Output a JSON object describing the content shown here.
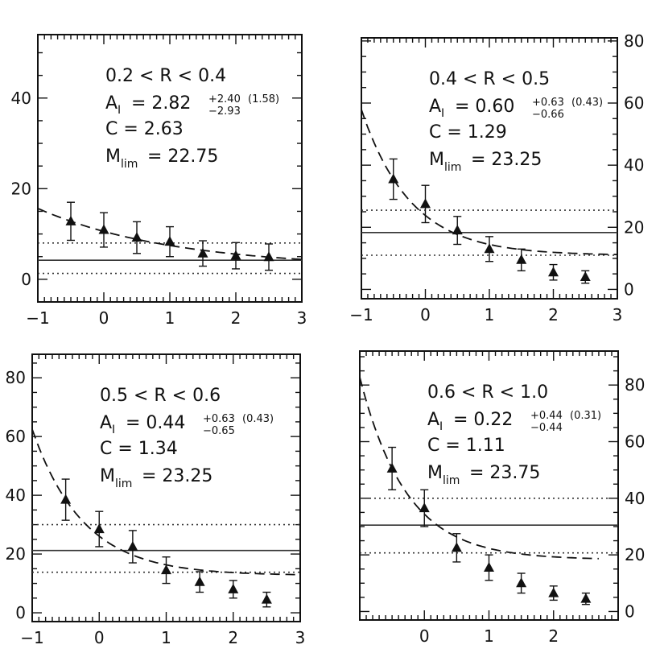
{
  "chart_data": [
    {
      "type": "scatter",
      "xlim": [
        -1,
        3
      ],
      "ylim": [
        -5,
        54
      ],
      "x_ticks": [
        -1,
        0,
        1,
        2,
        3
      ],
      "x_tick_labels": [
        "−1",
        "0",
        "1",
        "2",
        "3"
      ],
      "y_ticks": [
        0,
        20,
        40
      ],
      "y_tick_labels": [
        "0",
        "20",
        "40"
      ],
      "y_axis_side": "left",
      "annotation": {
        "range_label": "0.2 < R < 0.4",
        "a_label": "A",
        "a_sub": "I",
        "a_value": "= 2.82",
        "a_err_plus": "+2.40",
        "a_err_minus": "−2.93",
        "a_extra": "(1.58)",
        "c_label": "C = 2.63",
        "m_label": "M",
        "m_sub": "lim",
        "m_value": "= 22.75"
      },
      "points": [
        {
          "x": -0.5,
          "y": 12.8,
          "err": 4.2
        },
        {
          "x": 0.0,
          "y": 10.9,
          "err": 3.8
        },
        {
          "x": 0.5,
          "y": 9.2,
          "err": 3.5
        },
        {
          "x": 1.0,
          "y": 8.3,
          "err": 3.3
        },
        {
          "x": 1.5,
          "y": 5.7,
          "err": 2.8
        },
        {
          "x": 2.0,
          "y": 5.2,
          "err": 2.9
        },
        {
          "x": 2.5,
          "y": 4.9,
          "err": 2.9
        }
      ],
      "fit_curve": {
        "a": 2.82,
        "c": 2.63,
        "x0": -1,
        "x1": 3
      },
      "solid_line_y": 4.2,
      "dotted_lines_y": [
        8.0,
        1.3
      ]
    },
    {
      "type": "scatter",
      "xlim": [
        -1,
        3
      ],
      "ylim": [
        -3,
        81
      ],
      "x_ticks": [
        -1,
        0,
        1,
        2,
        3
      ],
      "x_tick_labels": [
        "−1",
        "0",
        "1",
        "2",
        "3"
      ],
      "y_ticks": [
        0,
        20,
        40,
        60,
        80
      ],
      "y_tick_labels": [
        "0",
        "20",
        "40",
        "60",
        "80"
      ],
      "y_axis_side": "right",
      "annotation": {
        "range_label": "0.4 < R < 0.5",
        "a_label": "A",
        "a_sub": "I",
        "a_value": "= 0.60",
        "a_err_plus": "+0.63",
        "a_err_minus": "−0.66",
        "a_extra": "(0.43)",
        "c_label": "C = 1.29",
        "m_label": "M",
        "m_sub": "lim",
        "m_value": "= 23.25"
      },
      "points": [
        {
          "x": -0.5,
          "y": 35.5,
          "err": 6.5
        },
        {
          "x": 0.0,
          "y": 27.5,
          "err": 6.0
        },
        {
          "x": 0.5,
          "y": 19.0,
          "err": 4.5
        },
        {
          "x": 1.0,
          "y": 13.0,
          "err": 4.0
        },
        {
          "x": 1.5,
          "y": 9.5,
          "err": 3.5
        },
        {
          "x": 2.0,
          "y": 5.5,
          "err": 2.5
        },
        {
          "x": 2.5,
          "y": 4.0,
          "err": 2.0
        }
      ],
      "fit_curve": {
        "a": 0.6,
        "c": 1.29,
        "x0": -1,
        "x1": 3
      },
      "solid_line_y": 18.3,
      "dotted_lines_y": [
        25.5,
        11.0
      ]
    },
    {
      "type": "scatter",
      "xlim": [
        -1,
        3
      ],
      "ylim": [
        -3,
        88
      ],
      "x_ticks": [
        -1,
        0,
        1,
        2,
        3
      ],
      "x_tick_labels": [
        "−1",
        "0",
        "1",
        "2",
        "3"
      ],
      "y_ticks": [
        0,
        20,
        40,
        60,
        80
      ],
      "y_tick_labels": [
        "0",
        "20",
        "40",
        "60",
        "80"
      ],
      "y_axis_side": "left",
      "annotation": {
        "range_label": "0.5 < R < 0.6",
        "a_label": "A",
        "a_sub": "I",
        "a_value": "= 0.44",
        "a_err_plus": "+0.63",
        "a_err_minus": "−0.65",
        "a_extra": "(0.43)",
        "c_label": "C = 1.34",
        "m_label": "M",
        "m_sub": "lim",
        "m_value": "= 23.25"
      },
      "points": [
        {
          "x": -0.5,
          "y": 38.5,
          "err": 7.0
        },
        {
          "x": 0.0,
          "y": 28.5,
          "err": 6.0
        },
        {
          "x": 0.5,
          "y": 22.5,
          "err": 5.5
        },
        {
          "x": 1.0,
          "y": 14.5,
          "err": 4.5
        },
        {
          "x": 1.5,
          "y": 10.5,
          "err": 3.5
        },
        {
          "x": 2.0,
          "y": 8.0,
          "err": 3.0
        },
        {
          "x": 2.5,
          "y": 4.5,
          "err": 2.5
        }
      ],
      "fit_curve": {
        "a": 0.44,
        "c": 1.34,
        "x0": -1,
        "x1": 3
      },
      "solid_line_y": 21.2,
      "dotted_lines_y": [
        30.0,
        13.8
      ]
    },
    {
      "type": "scatter",
      "xlim": [
        -1,
        3
      ],
      "ylim": [
        -3,
        92
      ],
      "x_ticks": [
        0,
        1,
        2
      ],
      "x_tick_labels": [
        "0",
        "1",
        "2"
      ],
      "y_ticks": [
        0,
        20,
        40,
        60,
        80
      ],
      "y_tick_labels": [
        "0",
        "20",
        "40",
        "60",
        "80"
      ],
      "y_axis_side": "right",
      "annotation": {
        "range_label": "0.6 < R < 1.0",
        "a_label": "A",
        "a_sub": "I",
        "a_value": "= 0.22",
        "a_err_plus": "+0.44",
        "a_err_minus": "−0.44",
        "a_extra": "(0.31)",
        "c_label": "C = 1.11",
        "m_label": "M",
        "m_sub": "lim",
        "m_value": "= 23.75"
      },
      "points": [
        {
          "x": -0.5,
          "y": 50.5,
          "err": 7.5
        },
        {
          "x": 0.0,
          "y": 36.5,
          "err": 6.5
        },
        {
          "x": 0.5,
          "y": 22.5,
          "err": 5.0
        },
        {
          "x": 1.0,
          "y": 15.5,
          "err": 4.5
        },
        {
          "x": 1.5,
          "y": 10.0,
          "err": 3.5
        },
        {
          "x": 2.0,
          "y": 6.5,
          "err": 2.5
        },
        {
          "x": 2.5,
          "y": 4.5,
          "err": 2.0
        }
      ],
      "fit_curve": {
        "a": 0.22,
        "c": 1.11,
        "x0": -1,
        "x1": 2.7
      },
      "solid_line_y": 30.5,
      "dotted_lines_y": [
        40.0,
        20.7
      ]
    }
  ]
}
